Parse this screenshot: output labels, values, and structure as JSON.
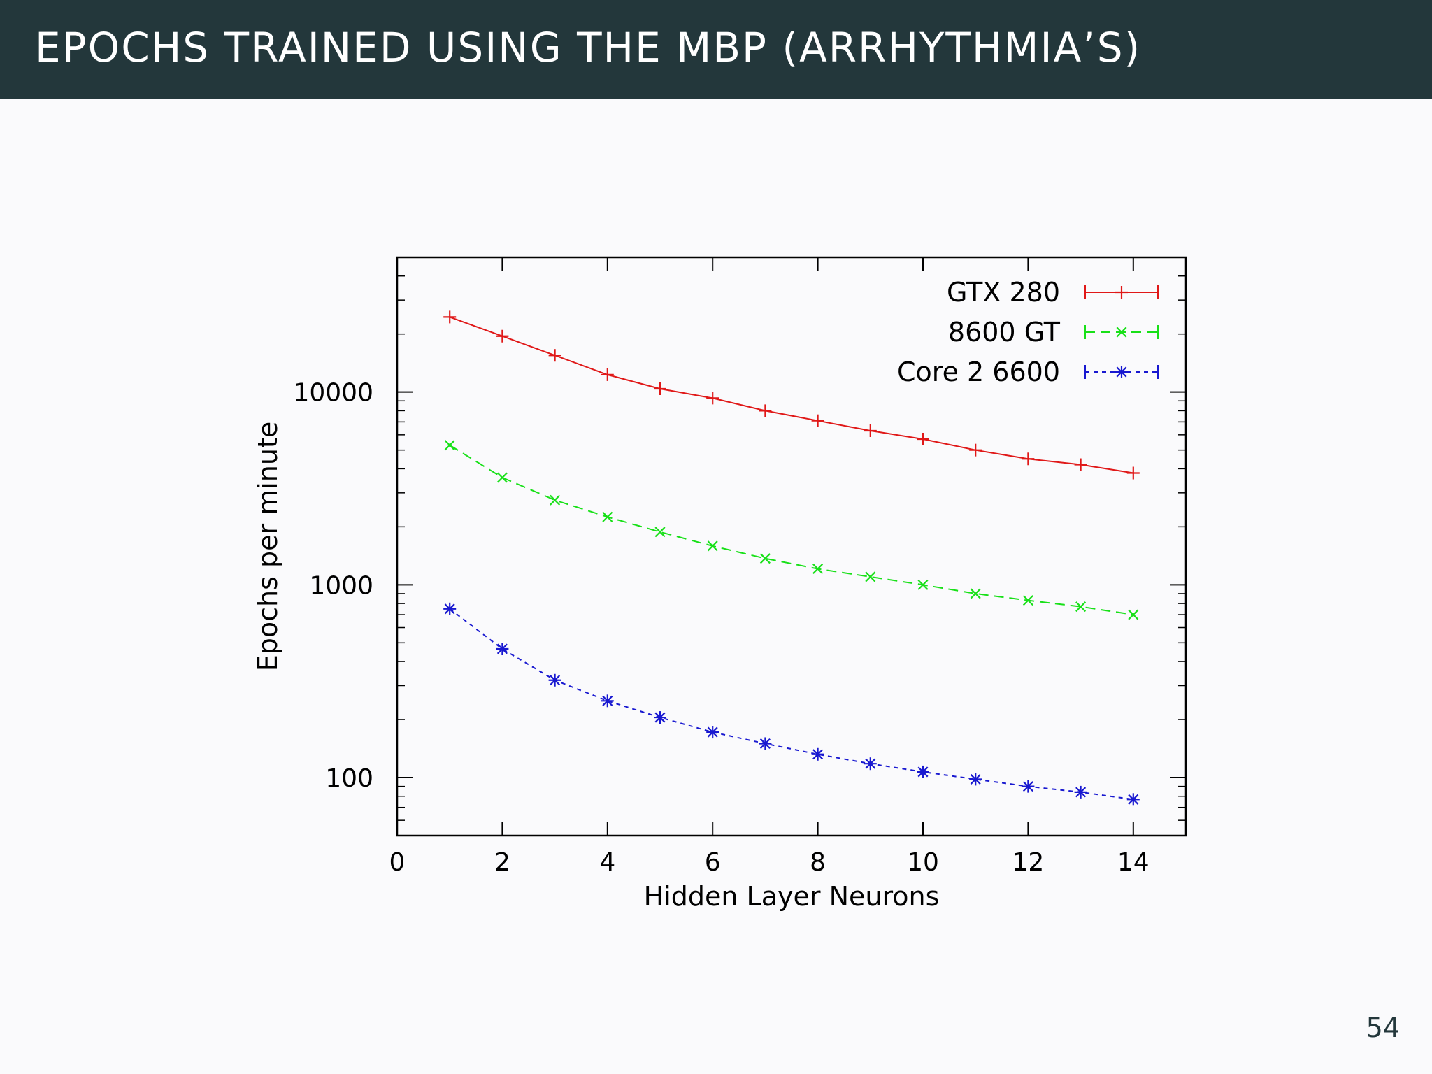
{
  "slide": {
    "title": "Epochs trained using the MBP (arrhythmia’s)",
    "page_number": "54"
  },
  "chart_data": {
    "type": "line",
    "title": "",
    "xlabel": "Hidden Layer Neurons",
    "ylabel": "Epochs per minute",
    "xlim": [
      0,
      15
    ],
    "ylim": [
      50,
      50000
    ],
    "y_scale": "log",
    "x_ticks": [
      0,
      2,
      4,
      6,
      8,
      10,
      12,
      14
    ],
    "y_ticks": [
      100,
      1000,
      10000
    ],
    "y_tick_labels": [
      "100",
      "1000",
      "10000"
    ],
    "grid": false,
    "legend_position": "top-right",
    "x": [
      1,
      2,
      3,
      4,
      5,
      6,
      7,
      8,
      9,
      10,
      11,
      12,
      13,
      14
    ],
    "series": [
      {
        "name": "GTX 280",
        "color": "#e01818",
        "marker": "plus",
        "line_style": "solid",
        "values": [
          24500,
          19500,
          15500,
          12300,
          10400,
          9300,
          8000,
          7100,
          6300,
          5700,
          5000,
          4500,
          4200,
          3800
        ]
      },
      {
        "name": "8600 GT",
        "color": "#18e018",
        "marker": "cross",
        "line_style": "dashed",
        "values": [
          5300,
          3600,
          2750,
          2250,
          1880,
          1590,
          1370,
          1210,
          1100,
          1000,
          900,
          830,
          770,
          700
        ]
      },
      {
        "name": "Core 2 6600",
        "color": "#1818d0",
        "marker": "star",
        "line_style": "dotted",
        "values": [
          750,
          465,
          320,
          250,
          205,
          172,
          150,
          132,
          118,
          107,
          98,
          90,
          84,
          77
        ]
      }
    ]
  }
}
